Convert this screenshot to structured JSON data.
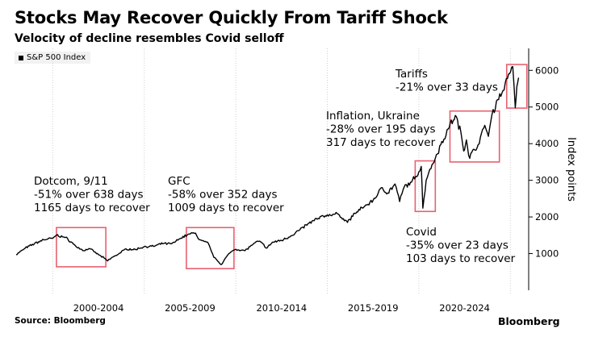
{
  "chart_data": {
    "type": "line",
    "title": "Stocks May Recover Quickly From Tariff Shock",
    "subtitle": "Velocity of decline resembles Covid selloff",
    "ylabel": "Index points",
    "xlabel": "",
    "ylim": [
      0,
      6600
    ],
    "xlim": [
      1998.0,
      2026.0
    ],
    "y_ticks": [
      1000,
      2000,
      3000,
      4000,
      5000,
      6000
    ],
    "x_tick_labels": [
      "2000-2004",
      "2005-2009",
      "2010-2014",
      "2015-2019",
      "2020-2024"
    ],
    "x_tick_centers": [
      2002.5,
      2007.5,
      2012.5,
      2017.5,
      2022.5
    ],
    "grid": "vertical dotted",
    "series": [
      {
        "name": "S&P 500 Index",
        "x": [
          1998.0,
          1998.5,
          1999.0,
          1999.5,
          2000.0,
          2000.2,
          2000.7,
          2001.0,
          2001.3,
          2001.7,
          2002.0,
          2002.5,
          2002.8,
          2003.0,
          2003.2,
          2003.6,
          2004.0,
          2004.5,
          2005.0,
          2005.5,
          2006.0,
          2006.5,
          2007.0,
          2007.4,
          2007.8,
          2008.0,
          2008.5,
          2008.8,
          2009.0,
          2009.2,
          2009.5,
          2009.8,
          2010.0,
          2010.5,
          2011.0,
          2011.3,
          2011.7,
          2012.0,
          2012.5,
          2013.0,
          2013.5,
          2014.0,
          2014.5,
          2015.0,
          2015.6,
          2016.1,
          2016.5,
          2017.0,
          2017.5,
          2018.0,
          2018.3,
          2018.7,
          2018.95,
          2019.2,
          2019.6,
          2020.0,
          2020.13,
          2020.22,
          2020.4,
          2020.6,
          2020.9,
          2021.2,
          2021.6,
          2021.99,
          2022.3,
          2022.45,
          2022.6,
          2022.78,
          2023.0,
          2023.3,
          2023.6,
          2023.8,
          2024.0,
          2024.3,
          2024.6,
          2024.9,
          2025.13,
          2025.27,
          2025.35,
          2025.45
        ],
        "values": [
          970,
          1150,
          1270,
          1380,
          1420,
          1500,
          1440,
          1320,
          1180,
          1080,
          1140,
          970,
          880,
          800,
          880,
          990,
          1130,
          1110,
          1190,
          1200,
          1270,
          1270,
          1420,
          1530,
          1560,
          1380,
          1280,
          900,
          800,
          700,
          920,
          1070,
          1120,
          1080,
          1280,
          1340,
          1150,
          1310,
          1360,
          1480,
          1650,
          1830,
          1960,
          2060,
          2080,
          1850,
          2100,
          2270,
          2450,
          2800,
          2650,
          2900,
          2420,
          2820,
          2950,
          3230,
          3380,
          2240,
          3000,
          3300,
          3600,
          3970,
          4400,
          4770,
          4300,
          3800,
          4100,
          3600,
          3850,
          4000,
          4500,
          4200,
          4800,
          5200,
          5450,
          5900,
          6100,
          4980,
          5550,
          5800
        ]
      }
    ],
    "annotations": [
      {
        "label": "Dotcom, 9/11",
        "lines": [
          "Dotcom, 9/11",
          "-51% over 638 days",
          "1165 days to recover"
        ],
        "box_x": [
          2000.2,
          2002.9
        ],
        "box_y": [
          640,
          1710
        ]
      },
      {
        "label": "GFC",
        "lines": [
          "GFC",
          "-58% over 352 days",
          "1009 days to recover"
        ],
        "box_x": [
          2007.3,
          2009.9
        ],
        "box_y": [
          590,
          1710
        ]
      },
      {
        "label": "Covid",
        "lines": [
          "Covid",
          "-35% over 23 days",
          "103 days to recover"
        ],
        "box_x": [
          2019.8,
          2020.9
        ],
        "box_y": [
          2150,
          3530
        ]
      },
      {
        "label": "Inflation, Ukraine",
        "lines": [
          "Inflation, Ukraine",
          "-28% over 195 days",
          "317 days to recover"
        ],
        "box_x": [
          2021.7,
          2024.4
        ],
        "box_y": [
          3500,
          4890
        ]
      },
      {
        "label": "Tariffs",
        "lines": [
          "Tariffs",
          "-21% over 33 days"
        ],
        "box_x": [
          2024.8,
          2025.9
        ],
        "box_y": [
          4970,
          6160
        ]
      }
    ],
    "colors": {
      "line": "#000000",
      "box": "#e8606f",
      "grid": "#cfcfcf"
    }
  },
  "legend": {
    "label": "S&P 500 Index"
  },
  "footer": {
    "source": "Source: Bloomberg",
    "brand": "Bloomberg"
  }
}
